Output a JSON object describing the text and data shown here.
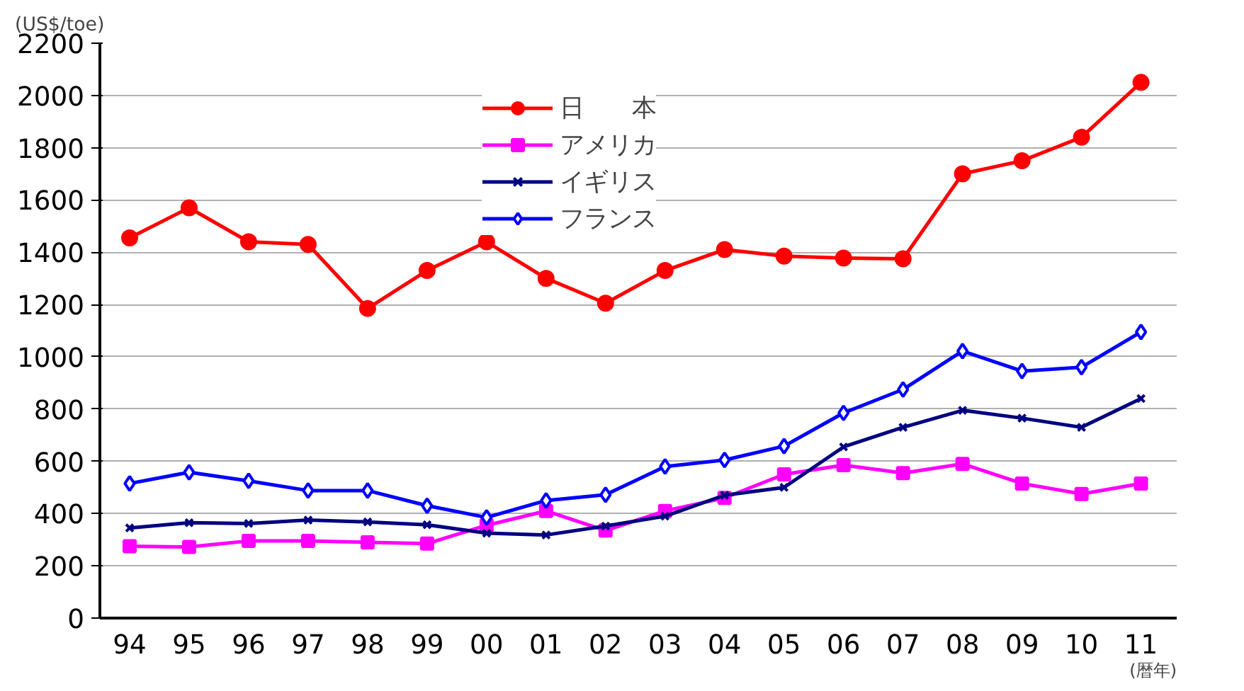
{
  "chart_data": {
    "type": "line",
    "ylabel": "(US$/toe)",
    "xlabel": "(暦年)",
    "categories": [
      "94",
      "95",
      "96",
      "97",
      "98",
      "99",
      "00",
      "01",
      "02",
      "03",
      "04",
      "05",
      "06",
      "07",
      "08",
      "09",
      "10",
      "11"
    ],
    "ylim": [
      0,
      2200
    ],
    "yticks": [
      0,
      200,
      400,
      600,
      800,
      1000,
      1200,
      1400,
      1600,
      1800,
      2000,
      2200
    ],
    "grid": "y",
    "legend": "top",
    "line_style": "solid",
    "series": [
      {
        "name": "日　　本",
        "color": "#ff0000",
        "marker": "circle",
        "values": [
          1455,
          1570,
          1440,
          1430,
          1185,
          1330,
          1440,
          1300,
          1205,
          1330,
          1410,
          1385,
          1378,
          1375,
          1700,
          1750,
          1840,
          2050
        ]
      },
      {
        "name": "アメリカ",
        "color": "#ff00ff",
        "marker": "square",
        "values": [
          275,
          272,
          295,
          295,
          290,
          285,
          355,
          410,
          335,
          410,
          460,
          550,
          585,
          555,
          590,
          515,
          475,
          515
        ]
      },
      {
        "name": "イギリス",
        "color": "#000080",
        "marker": "x",
        "values": [
          345,
          365,
          362,
          375,
          368,
          357,
          325,
          318,
          352,
          390,
          470,
          500,
          655,
          730,
          795,
          765,
          730,
          840
        ]
      },
      {
        "name": "フランス",
        "color": "#0000ff",
        "marker": "diamond",
        "values": [
          515,
          558,
          525,
          488,
          488,
          430,
          385,
          450,
          472,
          580,
          605,
          658,
          785,
          875,
          1022,
          945,
          960,
          1095
        ]
      }
    ]
  }
}
